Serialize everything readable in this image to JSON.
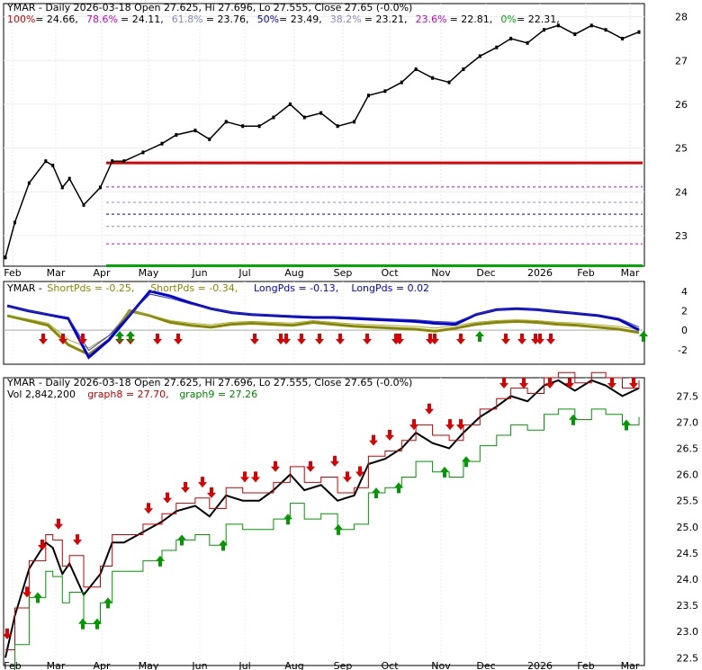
{
  "chart_data": [
    {
      "type": "line",
      "title": "YMAR - Daily 2026-03-18 Open 27.625, Hi 27.696, Lo 27.555, Close 27.65 (-0.0%)",
      "fib_levels": [
        {
          "label": "100%",
          "value": 24.66,
          "color": "#dd0000"
        },
        {
          "label": "78.6%",
          "value": 24.11,
          "color": "#cc00cc"
        },
        {
          "label": "61.8%",
          "value": 23.76,
          "color": "#8888cc"
        },
        {
          "label": "50%",
          "value": 23.49,
          "color": "#0000cc"
        },
        {
          "label": "38.2%",
          "value": 23.21,
          "color": "#8888cc"
        },
        {
          "label": "23.6%",
          "value": 22.81,
          "color": "#cc00cc"
        },
        {
          "label": "0%",
          "value": 22.31,
          "color": "#00aa00"
        }
      ],
      "months": [
        "Feb",
        "Mar",
        "Apr",
        "May",
        "Jun",
        "Jul",
        "Aug",
        "Sep",
        "Oct",
        "Nov",
        "Dec",
        "2026",
        "Feb",
        "Mar"
      ],
      "y_ticks": [
        23,
        24,
        25,
        26,
        27,
        28
      ],
      "ylim": [
        22.3,
        28.3
      ],
      "price_path": [
        [
          0,
          22.5
        ],
        [
          0.04,
          23.3
        ],
        [
          0.1,
          24.2
        ],
        [
          0.17,
          24.7
        ],
        [
          0.2,
          24.6
        ],
        [
          0.24,
          24.1
        ],
        [
          0.27,
          24.3
        ],
        [
          0.33,
          23.7
        ],
        [
          0.4,
          24.1
        ],
        [
          0.45,
          24.7
        ],
        [
          0.5,
          24.7
        ],
        [
          0.58,
          24.9
        ],
        [
          0.66,
          25.1
        ],
        [
          0.72,
          25.3
        ],
        [
          0.8,
          25.4
        ],
        [
          0.86,
          25.2
        ],
        [
          0.93,
          25.6
        ],
        [
          1.0,
          25.5
        ],
        [
          1.07,
          25.5
        ],
        [
          1.13,
          25.7
        ],
        [
          1.2,
          26.0
        ],
        [
          1.26,
          25.7
        ],
        [
          1.33,
          25.8
        ],
        [
          1.4,
          25.5
        ],
        [
          1.47,
          25.6
        ],
        [
          1.53,
          26.2
        ],
        [
          1.6,
          26.3
        ],
        [
          1.67,
          26.5
        ],
        [
          1.73,
          26.8
        ],
        [
          1.8,
          26.6
        ],
        [
          1.87,
          26.5
        ],
        [
          1.93,
          26.8
        ],
        [
          2.0,
          27.1
        ],
        [
          2.07,
          27.3
        ],
        [
          2.13,
          27.5
        ],
        [
          2.2,
          27.4
        ],
        [
          2.27,
          27.7
        ],
        [
          2.33,
          27.8
        ],
        [
          2.4,
          27.6
        ],
        [
          2.47,
          27.8
        ],
        [
          2.53,
          27.7
        ],
        [
          2.6,
          27.5
        ],
        [
          2.67,
          27.65
        ]
      ]
    },
    {
      "type": "line",
      "title": "YMAR - ShortPds = -0.25, ShortPds = -0.34, LongPds = -0.13, LongPds = 0.02",
      "legend": [
        {
          "label": "YMAR -",
          "color": "#000000"
        },
        {
          "label": "ShortPds = -0.25,",
          "color": "#888800"
        },
        {
          "label": "ShortPds = -0.34,",
          "color": "#888800"
        },
        {
          "label": "LongPds = -0.13,",
          "color": "#0000dd"
        },
        {
          "label": "LongPds = 0.02",
          "color": "#0000dd"
        }
      ],
      "y_ticks": [
        4,
        2,
        0,
        -2
      ],
      "ylim": [
        -3.5,
        5
      ],
      "series": [
        {
          "name": "ShortPds",
          "values": [
            1.5,
            1.0,
            0.5,
            -1.5,
            -2.5,
            -1.0,
            2.0,
            1.5,
            0.8,
            0.5,
            0.3,
            0.6,
            0.7,
            0.6,
            0.5,
            0.8,
            0.6,
            0.4,
            0.3,
            0.2,
            0.1,
            -0.1,
            0.2,
            0.6,
            0.8,
            0.9,
            0.8,
            0.6,
            0.5,
            0.3,
            0.1,
            -0.25
          ]
        },
        {
          "name": "LongPds",
          "values": [
            2.5,
            2.0,
            1.6,
            1.2,
            -2.8,
            -1.0,
            1.5,
            4.0,
            3.5,
            2.8,
            2.2,
            1.8,
            1.6,
            1.5,
            1.4,
            1.3,
            1.3,
            1.2,
            1.1,
            1.0,
            0.9,
            0.7,
            0.6,
            1.6,
            2.1,
            2.2,
            2.1,
            1.9,
            1.7,
            1.5,
            1.1,
            0.02
          ]
        }
      ]
    },
    {
      "type": "line",
      "title": "YMAR - Daily 2026-03-18 Open 27.625, Hi 27.696, Lo 27.555, Close 27.65 (-0.0%)",
      "legend": [
        {
          "label": "Vol 2,842,200",
          "color": "#000000"
        },
        {
          "label": "graph8 = 27.70,",
          "color": "#cc0000"
        },
        {
          "label": "graph9 = 27.26",
          "color": "#008800"
        }
      ],
      "y_ticks": [
        "27.5",
        "27.0",
        "26.5",
        "26.0",
        "25.5",
        "25.0",
        "24.5",
        "24.0",
        "23.5",
        "23.0",
        "22.5"
      ],
      "ylim": [
        22.35,
        27.85
      ]
    }
  ],
  "header": {
    "panel1_text_ticker": "YMAR - Daily 2026-03-18 Open 27.625, Hi 27.696, Lo 27.555, Close 27.65 (-0.0%)"
  }
}
